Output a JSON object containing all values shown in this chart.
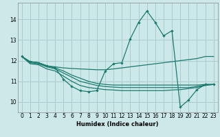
{
  "bg_color": "#cce8e8",
  "grid_color": "#aacccc",
  "line_color": "#1a7a6e",
  "xlabel": "Humidex (Indice chaleur)",
  "xlim": [
    -0.5,
    23.5
  ],
  "ylim": [
    9.5,
    14.8
  ],
  "yticks": [
    10,
    11,
    12,
    13,
    14
  ],
  "xticks": [
    0,
    1,
    2,
    3,
    4,
    5,
    6,
    7,
    8,
    9,
    10,
    11,
    12,
    13,
    14,
    15,
    16,
    17,
    18,
    19,
    20,
    21,
    22,
    23
  ],
  "lines": [
    {
      "x": [
        0,
        1,
        2,
        3,
        4,
        5,
        6,
        7,
        8,
        9,
        10,
        11,
        12,
        13,
        14,
        15,
        16,
        17,
        18,
        19,
        20,
        21,
        22,
        23
      ],
      "y": [
        12.2,
        11.95,
        11.9,
        11.75,
        11.65,
        11.1,
        10.75,
        10.55,
        10.5,
        10.55,
        11.5,
        11.85,
        11.9,
        13.05,
        13.85,
        14.4,
        13.85,
        13.2,
        13.45,
        9.75,
        10.1,
        10.6,
        10.85,
        10.85
      ],
      "marker": true
    },
    {
      "x": [
        0,
        1,
        2,
        3,
        4,
        5,
        6,
        7,
        8,
        9,
        10,
        11,
        12,
        13,
        14,
        15,
        16,
        17,
        18,
        19,
        20,
        21,
        22,
        23
      ],
      "y": [
        12.2,
        11.95,
        11.9,
        11.75,
        11.7,
        11.65,
        11.62,
        11.6,
        11.58,
        11.56,
        11.56,
        11.6,
        11.65,
        11.7,
        11.75,
        11.8,
        11.85,
        11.9,
        11.95,
        12.0,
        12.05,
        12.1,
        12.2,
        12.2
      ],
      "marker": false
    },
    {
      "x": [
        0,
        1,
        2,
        3,
        4,
        5,
        6,
        7,
        8,
        9,
        10,
        11,
        12,
        13,
        14,
        15,
        16,
        17,
        18,
        19,
        20,
        21,
        22,
        23
      ],
      "y": [
        12.2,
        11.95,
        11.9,
        11.75,
        11.65,
        11.5,
        11.3,
        11.15,
        11.0,
        10.9,
        10.85,
        10.82,
        10.82,
        10.82,
        10.82,
        10.82,
        10.82,
        10.82,
        10.82,
        10.82,
        10.82,
        10.82,
        10.85,
        10.85
      ],
      "marker": false
    },
    {
      "x": [
        0,
        1,
        2,
        3,
        4,
        5,
        6,
        7,
        8,
        9,
        10,
        11,
        12,
        13,
        14,
        15,
        16,
        17,
        18,
        19,
        20,
        21,
        22,
        23
      ],
      "y": [
        12.2,
        11.9,
        11.85,
        11.7,
        11.6,
        11.4,
        11.2,
        11.0,
        10.9,
        10.8,
        10.75,
        10.72,
        10.7,
        10.7,
        10.7,
        10.7,
        10.7,
        10.7,
        10.7,
        10.7,
        10.7,
        10.75,
        10.82,
        10.85
      ],
      "marker": false
    },
    {
      "x": [
        0,
        1,
        2,
        3,
        4,
        5,
        6,
        7,
        8,
        9,
        10,
        11,
        12,
        13,
        14,
        15,
        16,
        17,
        18,
        19,
        20,
        21,
        22,
        23
      ],
      "y": [
        12.2,
        11.85,
        11.8,
        11.6,
        11.5,
        11.25,
        11.0,
        10.8,
        10.7,
        10.65,
        10.6,
        10.58,
        10.55,
        10.55,
        10.55,
        10.55,
        10.55,
        10.55,
        10.58,
        10.6,
        10.65,
        10.7,
        10.8,
        10.85
      ],
      "marker": false
    }
  ],
  "axis_fontsize": 6,
  "tick_fontsize": 5.5
}
